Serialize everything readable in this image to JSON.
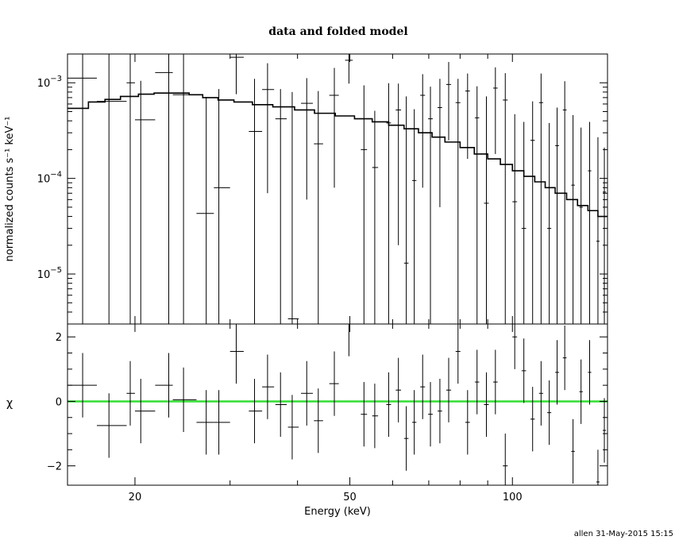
{
  "footer": "allen 31-May-2015 15:15",
  "chart_data": {
    "type": "scatter",
    "title": "data and folded model",
    "xlabel": "Energy (keV)",
    "x_scale": "log",
    "xlim": [
      15,
      150
    ],
    "x_ticks": [
      {
        "value": 20,
        "label": "20"
      },
      {
        "value": 50,
        "label": "50"
      },
      {
        "value": 100,
        "label": "100"
      }
    ],
    "top_panel": {
      "ylabel": "normalized counts s⁻¹ keV⁻¹",
      "y_scale": "log",
      "ylim": [
        3e-06,
        0.002
      ],
      "y_ticks": [
        {
          "value": 0.001,
          "base": "10",
          "exp": "−3"
        },
        {
          "value": 0.0001,
          "base": "10",
          "exp": "−4"
        },
        {
          "value": 1e-05,
          "base": "10",
          "exp": "−5"
        }
      ],
      "data": [
        {
          "x": 16.0,
          "xerr": [
            15.0,
            17.0
          ],
          "y": 0.00112,
          "ylo": 3e-06,
          "yhi": 0.002
        },
        {
          "x": 17.9,
          "xerr": [
            17.0,
            19.3
          ],
          "y": 0.00064,
          "ylo": 3e-06,
          "yhi": 0.002
        },
        {
          "x": 19.6,
          "xerr": [
            19.3,
            20.0
          ],
          "y": 0.001,
          "ylo": 3e-06,
          "yhi": 0.002
        },
        {
          "x": 20.5,
          "xerr": [
            20.0,
            21.8
          ],
          "y": 0.00041,
          "ylo": 3e-06,
          "yhi": 0.00105
        },
        {
          "x": 23.1,
          "xerr": [
            21.8,
            23.5
          ],
          "y": 0.00128,
          "ylo": 3e-06,
          "yhi": 0.002
        },
        {
          "x": 24.6,
          "xerr": [
            23.5,
            26.0
          ],
          "y": 0.00075,
          "ylo": 3e-06,
          "yhi": 0.002
        },
        {
          "x": 27.1,
          "xerr": [
            26.0,
            28.0
          ],
          "y": 4.3e-05,
          "ylo": 3e-06,
          "yhi": 0.00071
        },
        {
          "x": 28.6,
          "xerr": [
            28.0,
            30.0
          ],
          "y": 8e-05,
          "ylo": 3e-06,
          "yhi": 0.00086
        },
        {
          "x": 30.8,
          "xerr": [
            30.0,
            31.8
          ],
          "y": 0.00185,
          "ylo": 0.00076,
          "yhi": 0.002
        },
        {
          "x": 33.3,
          "xerr": [
            32.5,
            34.4
          ],
          "y": 0.00031,
          "ylo": 3e-06,
          "yhi": 0.0011
        },
        {
          "x": 35.2,
          "xerr": [
            34.4,
            36.2
          ],
          "y": 0.00085,
          "ylo": 7e-05,
          "yhi": 0.0016
        },
        {
          "x": 37.2,
          "xerr": [
            36.4,
            38.2
          ],
          "y": 0.00042,
          "ylo": 3e-06,
          "yhi": 0.00086
        },
        {
          "x": 39.1,
          "xerr": [
            38.4,
            40.2
          ],
          "y": 3.4e-06,
          "ylo": 3e-06,
          "yhi": 0.0008
        },
        {
          "x": 41.6,
          "xerr": [
            40.6,
            42.7
          ],
          "y": 0.00061,
          "ylo": 6e-05,
          "yhi": 0.00112
        },
        {
          "x": 43.7,
          "xerr": [
            42.9,
            44.6
          ],
          "y": 0.00023,
          "ylo": 3e-06,
          "yhi": 0.00082
        },
        {
          "x": 46.8,
          "xerr": [
            45.8,
            47.7
          ],
          "y": 0.00074,
          "ylo": 8e-05,
          "yhi": 0.00143
        },
        {
          "x": 49.8,
          "xerr": [
            49.0,
            50.6
          ],
          "y": 0.00172,
          "ylo": 0.00098,
          "yhi": 0.002
        },
        {
          "x": 53.1,
          "xerr": [
            52.4,
            53.8
          ],
          "y": 0.0002,
          "ylo": 3e-06,
          "yhi": 0.00094
        },
        {
          "x": 55.6,
          "xerr": [
            55.0,
            56.4
          ],
          "y": 0.00013,
          "ylo": 3e-06,
          "yhi": 0.00051
        },
        {
          "x": 59.0,
          "xerr": [
            58.4,
            59.6
          ],
          "y": 0.00038,
          "ylo": 3e-06,
          "yhi": 0.00099
        },
        {
          "x": 61.5,
          "xerr": [
            60.8,
            62.2
          ],
          "y": 0.00052,
          "ylo": 2e-05,
          "yhi": 0.00098
        },
        {
          "x": 63.6,
          "xerr": [
            63.0,
            64.2
          ],
          "y": 1.3e-05,
          "ylo": 3e-06,
          "yhi": 0.00072
        },
        {
          "x": 65.8,
          "xerr": [
            65.2,
            66.4
          ],
          "y": 9.5e-05,
          "ylo": 3e-06,
          "yhi": 0.00053
        },
        {
          "x": 68.2,
          "xerr": [
            67.5,
            68.9
          ],
          "y": 0.00074,
          "ylo": 8e-05,
          "yhi": 0.00123
        },
        {
          "x": 70.5,
          "xerr": [
            69.8,
            71.2
          ],
          "y": 0.00042,
          "ylo": 3e-06,
          "yhi": 0.00091
        },
        {
          "x": 73.4,
          "xerr": [
            72.7,
            74.1
          ],
          "y": 0.00055,
          "ylo": 5e-05,
          "yhi": 0.0011
        },
        {
          "x": 76.2,
          "xerr": [
            75.4,
            77.0
          ],
          "y": 0.00096,
          "ylo": 0.00025,
          "yhi": 0.00165
        },
        {
          "x": 79.3,
          "xerr": [
            78.5,
            80.1
          ],
          "y": 0.00062,
          "ylo": 3e-06,
          "yhi": 0.0011
        },
        {
          "x": 82.6,
          "xerr": [
            81.8,
            83.4
          ],
          "y": 0.00082,
          "ylo": 0.00016,
          "yhi": 0.00125
        },
        {
          "x": 86.0,
          "xerr": [
            85.2,
            86.8
          ],
          "y": 0.00043,
          "ylo": 3e-06,
          "yhi": 0.00092
        },
        {
          "x": 89.5,
          "xerr": [
            88.6,
            90.4
          ],
          "y": 5.5e-05,
          "ylo": 3e-06,
          "yhi": 0.00072
        },
        {
          "x": 93.0,
          "xerr": [
            92.1,
            93.9
          ],
          "y": 0.00088,
          "ylo": 0.00018,
          "yhi": 0.00145
        },
        {
          "x": 97.0,
          "xerr": [
            96.0,
            98.0
          ],
          "y": 0.00066,
          "ylo": 3e-06,
          "yhi": 0.00126
        },
        {
          "x": 101.0,
          "xerr": [
            100.0,
            102.0
          ],
          "y": 5.7e-05,
          "ylo": 3e-06,
          "yhi": 0.00047
        },
        {
          "x": 105.0,
          "xerr": [
            104.0,
            106.0
          ],
          "y": 3e-05,
          "ylo": 3e-06,
          "yhi": 0.00039
        },
        {
          "x": 109.0,
          "xerr": [
            108.0,
            110.0
          ],
          "y": 0.00025,
          "ylo": 3e-06,
          "yhi": 0.00064
        },
        {
          "x": 113.0,
          "xerr": [
            112.0,
            114.0
          ],
          "y": 0.00062,
          "ylo": 3e-06,
          "yhi": 0.00125
        },
        {
          "x": 117.0,
          "xerr": [
            116.0,
            118.0
          ],
          "y": 3e-05,
          "ylo": 3e-06,
          "yhi": 0.00038
        },
        {
          "x": 121.0,
          "xerr": [
            120.0,
            122.0
          ],
          "y": 0.00022,
          "ylo": 3e-06,
          "yhi": 0.00055
        },
        {
          "x": 125.0,
          "xerr": [
            124.0,
            126.0
          ],
          "y": 0.00052,
          "ylo": 3e-06,
          "yhi": 0.00104
        },
        {
          "x": 129.5,
          "xerr": [
            128.5,
            130.5
          ],
          "y": 8.5e-05,
          "ylo": 3e-06,
          "yhi": 0.00046
        },
        {
          "x": 134.0,
          "xerr": [
            133.0,
            135.0
          ],
          "y": 5e-05,
          "ylo": 3e-06,
          "yhi": 0.00034
        },
        {
          "x": 139.0,
          "xerr": [
            138.0,
            140.0
          ],
          "y": 0.00012,
          "ylo": 3e-06,
          "yhi": 0.00039
        },
        {
          "x": 144.0,
          "xerr": [
            143.0,
            145.0
          ],
          "y": 2.2e-05,
          "ylo": 3e-06,
          "yhi": 0.00027
        },
        {
          "x": 148.0,
          "xerr": [
            147.0,
            149.0
          ],
          "y": 7.2e-05,
          "ylo": 3e-06,
          "yhi": 0.00021
        }
      ],
      "model_steps": [
        {
          "x": 15.0,
          "y": 0.00054
        },
        {
          "x": 16.4,
          "y": 0.00063
        },
        {
          "x": 17.6,
          "y": 0.00067
        },
        {
          "x": 18.8,
          "y": 0.00072
        },
        {
          "x": 20.3,
          "y": 0.00076
        },
        {
          "x": 21.7,
          "y": 0.00078
        },
        {
          "x": 23.5,
          "y": 0.00078
        },
        {
          "x": 25.2,
          "y": 0.00075
        },
        {
          "x": 26.7,
          "y": 0.0007
        },
        {
          "x": 28.5,
          "y": 0.00066
        },
        {
          "x": 30.5,
          "y": 0.00063
        },
        {
          "x": 33.0,
          "y": 0.00059
        },
        {
          "x": 36.0,
          "y": 0.00056
        },
        {
          "x": 39.5,
          "y": 0.00052
        },
        {
          "x": 43.0,
          "y": 0.00048
        },
        {
          "x": 47.0,
          "y": 0.00045
        },
        {
          "x": 51.0,
          "y": 0.00042
        },
        {
          "x": 55.0,
          "y": 0.00039
        },
        {
          "x": 59.0,
          "y": 0.00036
        },
        {
          "x": 63.0,
          "y": 0.00033
        },
        {
          "x": 67.0,
          "y": 0.0003
        },
        {
          "x": 71.0,
          "y": 0.00027
        },
        {
          "x": 75.0,
          "y": 0.00024
        },
        {
          "x": 80.0,
          "y": 0.00021
        },
        {
          "x": 85.0,
          "y": 0.00018
        },
        {
          "x": 90.0,
          "y": 0.00016
        },
        {
          "x": 95.0,
          "y": 0.00014
        },
        {
          "x": 100.0,
          "y": 0.00012
        },
        {
          "x": 105.0,
          "y": 0.000105
        },
        {
          "x": 110.0,
          "y": 9.2e-05
        },
        {
          "x": 115.0,
          "y": 8e-05
        },
        {
          "x": 120.0,
          "y": 7e-05
        },
        {
          "x": 126.0,
          "y": 6e-05
        },
        {
          "x": 132.0,
          "y": 5.2e-05
        },
        {
          "x": 138.0,
          "y": 4.6e-05
        },
        {
          "x": 144.0,
          "y": 4e-05
        },
        {
          "x": 150.0,
          "y": 4e-05
        }
      ]
    },
    "bottom_panel": {
      "ylabel": "χ",
      "y_scale": "linear",
      "ylim": [
        -2.6,
        2.4
      ],
      "y_ticks": [
        {
          "value": 2,
          "label": "2"
        },
        {
          "value": 0,
          "label": "0"
        },
        {
          "value": -2,
          "label": "−2"
        }
      ],
      "zero_line_color": "#33dd33",
      "data": [
        {
          "x": 16.0,
          "xerr": [
            15.0,
            17.0
          ],
          "y": 0.5,
          "ylo": -0.5,
          "yhi": 1.5
        },
        {
          "x": 17.9,
          "xerr": [
            17.0,
            19.3
          ],
          "y": -0.75,
          "ylo": -1.75,
          "yhi": 0.25
        },
        {
          "x": 19.6,
          "xerr": [
            19.3,
            20.0
          ],
          "y": 0.25,
          "ylo": -0.75,
          "yhi": 1.25
        },
        {
          "x": 20.5,
          "xerr": [
            20.0,
            21.8
          ],
          "y": -0.3,
          "ylo": -1.3,
          "yhi": 0.7
        },
        {
          "x": 23.1,
          "xerr": [
            21.8,
            23.5
          ],
          "y": 0.5,
          "ylo": -0.5,
          "yhi": 1.5
        },
        {
          "x": 24.6,
          "xerr": [
            23.5,
            26.0
          ],
          "y": 0.05,
          "ylo": -0.95,
          "yhi": 1.05
        },
        {
          "x": 27.1,
          "xerr": [
            26.0,
            28.0
          ],
          "y": -0.65,
          "ylo": -1.65,
          "yhi": 0.35
        },
        {
          "x": 28.6,
          "xerr": [
            28.0,
            30.0
          ],
          "y": -0.65,
          "ylo": -1.65,
          "yhi": 0.35
        },
        {
          "x": 30.8,
          "xerr": [
            30.0,
            31.8
          ],
          "y": 1.55,
          "ylo": 0.55,
          "yhi": 2.55
        },
        {
          "x": 33.3,
          "xerr": [
            32.5,
            34.4
          ],
          "y": -0.3,
          "ylo": -1.3,
          "yhi": 0.7
        },
        {
          "x": 35.2,
          "xerr": [
            34.4,
            36.2
          ],
          "y": 0.45,
          "ylo": -0.55,
          "yhi": 1.45
        },
        {
          "x": 37.2,
          "xerr": [
            36.4,
            38.2
          ],
          "y": -0.1,
          "ylo": -1.1,
          "yhi": 0.9
        },
        {
          "x": 39.1,
          "xerr": [
            38.4,
            40.2
          ],
          "y": -0.8,
          "ylo": -1.8,
          "yhi": 0.2
        },
        {
          "x": 41.6,
          "xerr": [
            40.6,
            42.7
          ],
          "y": 0.25,
          "ylo": -0.75,
          "yhi": 1.25
        },
        {
          "x": 43.7,
          "xerr": [
            42.9,
            44.6
          ],
          "y": -0.6,
          "ylo": -1.6,
          "yhi": 0.4
        },
        {
          "x": 46.8,
          "xerr": [
            45.8,
            47.7
          ],
          "y": 0.55,
          "ylo": -0.45,
          "yhi": 1.55
        },
        {
          "x": 49.8,
          "xerr": [
            49.0,
            50.6
          ],
          "y": 2.4,
          "ylo": 1.4,
          "yhi": 2.6
        },
        {
          "x": 53.1,
          "xerr": [
            52.4,
            53.8
          ],
          "y": -0.4,
          "ylo": -1.4,
          "yhi": 0.6
        },
        {
          "x": 55.6,
          "xerr": [
            55.0,
            56.4
          ],
          "y": -0.45,
          "ylo": -1.45,
          "yhi": 0.55
        },
        {
          "x": 59.0,
          "xerr": [
            58.4,
            59.6
          ],
          "y": -0.1,
          "ylo": -1.1,
          "yhi": 0.9
        },
        {
          "x": 61.5,
          "xerr": [
            60.8,
            62.2
          ],
          "y": 0.35,
          "ylo": -0.65,
          "yhi": 1.35
        },
        {
          "x": 63.6,
          "xerr": [
            63.0,
            64.2
          ],
          "y": -1.15,
          "ylo": -2.15,
          "yhi": -0.15
        },
        {
          "x": 65.8,
          "xerr": [
            65.2,
            66.4
          ],
          "y": -0.65,
          "ylo": -1.65,
          "yhi": 0.35
        },
        {
          "x": 68.2,
          "xerr": [
            67.5,
            68.9
          ],
          "y": 0.45,
          "ylo": -0.55,
          "yhi": 1.45
        },
        {
          "x": 70.5,
          "xerr": [
            69.8,
            71.2
          ],
          "y": -0.4,
          "ylo": -1.4,
          "yhi": 0.6
        },
        {
          "x": 73.4,
          "xerr": [
            72.7,
            74.1
          ],
          "y": -0.3,
          "ylo": -1.3,
          "yhi": 0.7
        },
        {
          "x": 76.2,
          "xerr": [
            75.4,
            77.0
          ],
          "y": 0.35,
          "ylo": -0.65,
          "yhi": 1.35
        },
        {
          "x": 79.3,
          "xerr": [
            78.5,
            80.1
          ],
          "y": 1.55,
          "ylo": 0.55,
          "yhi": 2.55
        },
        {
          "x": 82.6,
          "xerr": [
            81.8,
            83.4
          ],
          "y": -0.65,
          "ylo": -1.65,
          "yhi": 0.35
        },
        {
          "x": 86.0,
          "xerr": [
            85.2,
            86.8
          ],
          "y": 0.6,
          "ylo": -0.4,
          "yhi": 1.6
        },
        {
          "x": 89.5,
          "xerr": [
            88.6,
            90.4
          ],
          "y": -0.1,
          "ylo": -1.1,
          "yhi": 0.9
        },
        {
          "x": 93.0,
          "xerr": [
            92.1,
            93.9
          ],
          "y": 0.6,
          "ylo": -0.4,
          "yhi": 1.6
        },
        {
          "x": 97.0,
          "xerr": [
            96.0,
            98.0
          ],
          "y": -2.0,
          "ylo": -2.6,
          "yhi": -1.0
        },
        {
          "x": 101.0,
          "xerr": [
            100.0,
            102.0
          ],
          "y": 2.0,
          "ylo": 1.0,
          "yhi": 2.6
        },
        {
          "x": 105.0,
          "xerr": [
            104.0,
            106.0
          ],
          "y": 0.95,
          "ylo": -0.05,
          "yhi": 1.95
        },
        {
          "x": 109.0,
          "xerr": [
            108.0,
            110.0
          ],
          "y": -0.55,
          "ylo": -1.55,
          "yhi": 0.45
        },
        {
          "x": 113.0,
          "xerr": [
            112.0,
            114.0
          ],
          "y": 0.25,
          "ylo": -0.75,
          "yhi": 1.25
        },
        {
          "x": 117.0,
          "xerr": [
            116.0,
            118.0
          ],
          "y": -0.35,
          "ylo": -1.35,
          "yhi": 0.65
        },
        {
          "x": 121.0,
          "xerr": [
            120.0,
            122.0
          ],
          "y": 0.9,
          "ylo": -0.1,
          "yhi": 1.9
        },
        {
          "x": 125.0,
          "xerr": [
            124.0,
            126.0
          ],
          "y": 1.35,
          "ylo": 0.35,
          "yhi": 2.35
        },
        {
          "x": 129.5,
          "xerr": [
            128.5,
            130.5
          ],
          "y": -1.55,
          "ylo": -2.55,
          "yhi": -0.55
        },
        {
          "x": 134.0,
          "xerr": [
            133.0,
            135.0
          ],
          "y": 0.3,
          "ylo": -0.7,
          "yhi": 1.3
        },
        {
          "x": 139.0,
          "xerr": [
            138.0,
            140.0
          ],
          "y": 0.9,
          "ylo": -0.1,
          "yhi": 1.9
        },
        {
          "x": 144.0,
          "xerr": [
            143.0,
            145.0
          ],
          "y": -2.5,
          "ylo": -2.6,
          "yhi": -1.5
        },
        {
          "x": 148.0,
          "xerr": [
            147.0,
            149.0
          ],
          "y": -0.9,
          "ylo": -1.9,
          "yhi": 0.1
        }
      ]
    }
  }
}
